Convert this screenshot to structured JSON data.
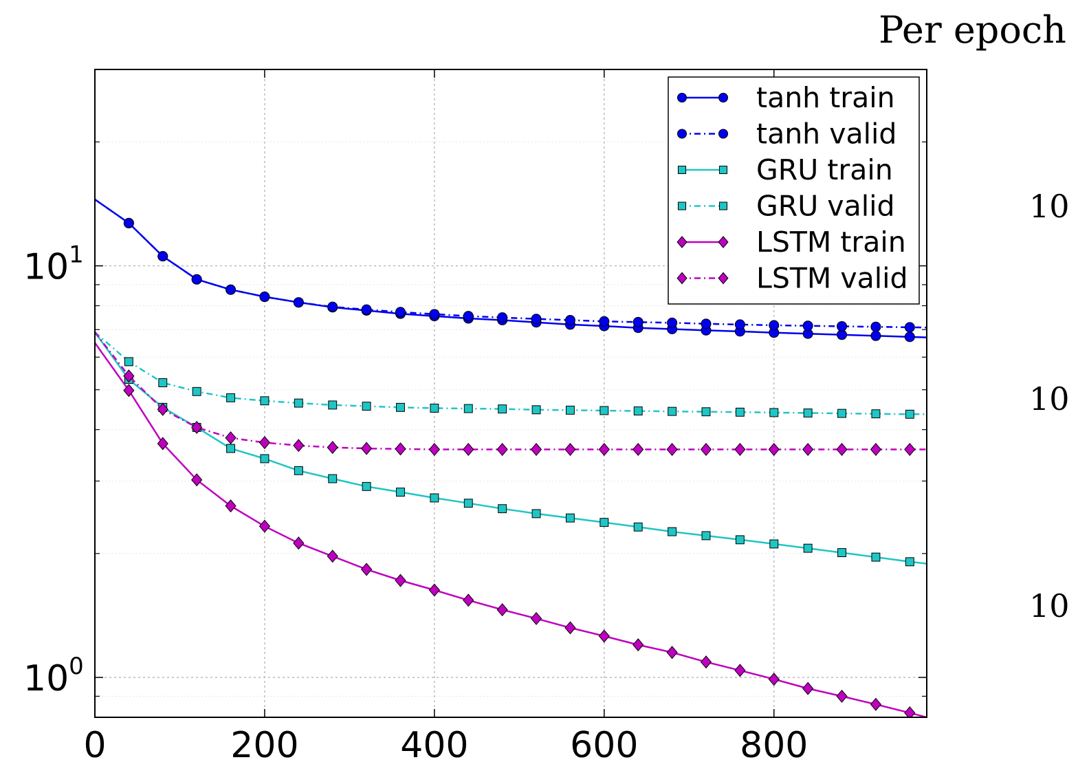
{
  "heading": "Per epoch",
  "partial_ticks": [
    "10",
    "10",
    "10"
  ],
  "colors": {
    "tanh": "#0000ee",
    "gru": "#20c5c5",
    "lstm": "#bf00bf",
    "grid": "#bbbbbb"
  },
  "chart_data": {
    "type": "line",
    "title": "",
    "xlabel": "",
    "ylabel": "",
    "xscale": "linear",
    "yscale": "log",
    "xlim": [
      0,
      980
    ],
    "ylim": [
      0.8,
      30
    ],
    "grid": true,
    "legend_position": "top-right",
    "x_ticks": [
      0,
      200,
      400,
      600,
      800
    ],
    "x_tick_labels": [
      "0",
      "200",
      "400",
      "600",
      "800"
    ],
    "y_ticks": [
      {
        "value": 1,
        "base": "10",
        "exp": "0"
      },
      {
        "value": 10,
        "base": "10",
        "exp": "1"
      }
    ],
    "x": [
      0,
      40,
      80,
      120,
      160,
      200,
      240,
      280,
      320,
      360,
      400,
      440,
      480,
      520,
      560,
      600,
      640,
      680,
      720,
      760,
      800,
      840,
      880,
      920,
      960,
      980
    ],
    "series": [
      {
        "name": "tanh train",
        "color": "tanh",
        "dash": "solid",
        "marker": "circle",
        "values": [
          14.5,
          12.7,
          10.55,
          9.27,
          8.75,
          8.41,
          8.15,
          7.93,
          7.79,
          7.65,
          7.55,
          7.45,
          7.38,
          7.29,
          7.2,
          7.14,
          7.07,
          7.02,
          6.97,
          6.93,
          6.88,
          6.84,
          6.8,
          6.76,
          6.72,
          6.7
        ]
      },
      {
        "name": "tanh valid",
        "color": "tanh",
        "dash": "dashdot",
        "marker": "circle",
        "values": [
          14.5,
          12.7,
          10.55,
          9.27,
          8.75,
          8.41,
          8.15,
          7.95,
          7.83,
          7.72,
          7.63,
          7.55,
          7.49,
          7.43,
          7.38,
          7.33,
          7.3,
          7.27,
          7.23,
          7.2,
          7.17,
          7.15,
          7.13,
          7.11,
          7.09,
          7.08
        ]
      },
      {
        "name": "GRU train",
        "color": "gru",
        "dash": "solid",
        "marker": "square",
        "values": [
          6.9,
          5.3,
          4.53,
          4.05,
          3.6,
          3.4,
          3.18,
          3.04,
          2.91,
          2.82,
          2.73,
          2.65,
          2.57,
          2.5,
          2.44,
          2.38,
          2.32,
          2.26,
          2.21,
          2.16,
          2.11,
          2.06,
          2.01,
          1.96,
          1.91,
          1.89
        ]
      },
      {
        "name": "GRU valid",
        "color": "gru",
        "dash": "dashdot",
        "marker": "square",
        "values": [
          6.9,
          5.85,
          5.2,
          4.95,
          4.78,
          4.7,
          4.64,
          4.59,
          4.56,
          4.53,
          4.51,
          4.5,
          4.49,
          4.47,
          4.46,
          4.45,
          4.44,
          4.43,
          4.42,
          4.41,
          4.4,
          4.39,
          4.38,
          4.37,
          4.36,
          4.36
        ]
      },
      {
        "name": "LSTM train",
        "color": "lstm",
        "dash": "solid",
        "marker": "diamond",
        "values": [
          6.5,
          4.98,
          3.7,
          3.02,
          2.61,
          2.33,
          2.12,
          1.97,
          1.83,
          1.72,
          1.63,
          1.54,
          1.46,
          1.39,
          1.32,
          1.26,
          1.2,
          1.15,
          1.09,
          1.04,
          0.99,
          0.94,
          0.9,
          0.86,
          0.82,
          0.8
        ]
      },
      {
        "name": "LSTM valid",
        "color": "lstm",
        "dash": "dashdot",
        "marker": "diamond",
        "values": [
          6.9,
          5.4,
          4.48,
          4.05,
          3.82,
          3.72,
          3.66,
          3.62,
          3.6,
          3.59,
          3.58,
          3.58,
          3.58,
          3.58,
          3.58,
          3.58,
          3.58,
          3.58,
          3.58,
          3.58,
          3.58,
          3.58,
          3.58,
          3.58,
          3.58,
          3.58
        ]
      }
    ]
  }
}
